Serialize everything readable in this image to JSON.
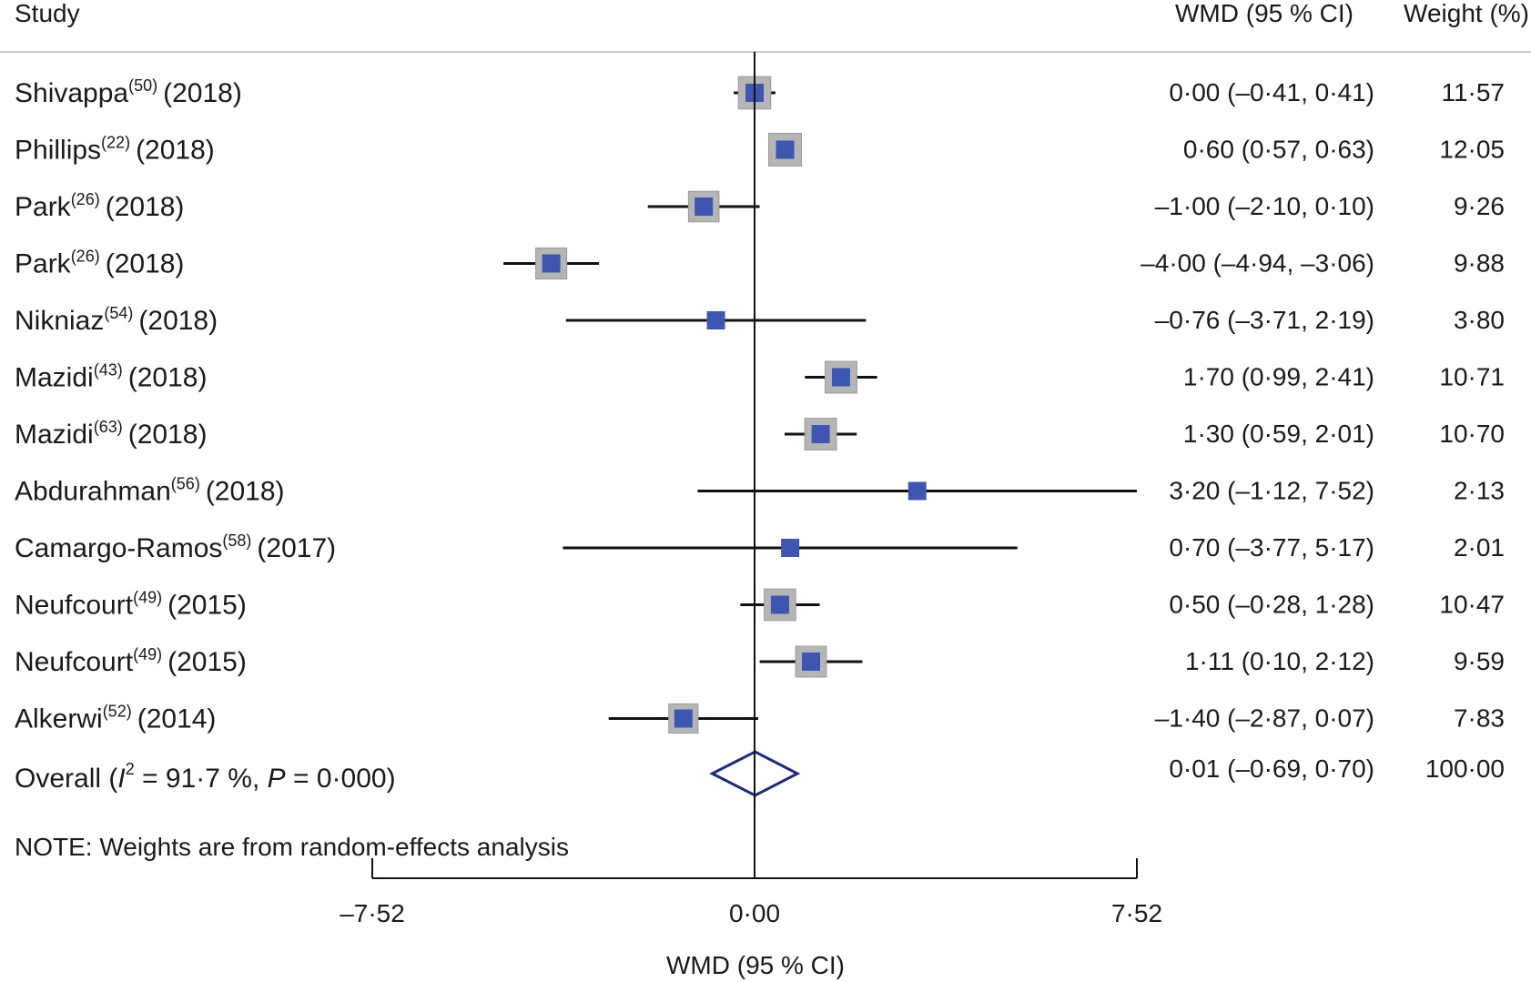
{
  "header": {
    "study": "Study",
    "wmd_ci": "WMD (95 % CI)",
    "weight": "Weight (%)"
  },
  "note": "NOTE: Weights are from random-effects analysis",
  "colors": {
    "marker": "#3f56b0",
    "marker_box": "#b5b5b5",
    "line": "#111111",
    "diamond": "#1f2a7a",
    "header_rule": "#cccccc"
  },
  "chart_data": {
    "type": "forest",
    "xlabel": "WMD (95 % CI)",
    "xlim": [
      -7.52,
      7.52
    ],
    "ticks": [
      {
        "value": -7.52,
        "label": "–7·52"
      },
      {
        "value": 0,
        "label": "0·00"
      },
      {
        "value": 7.52,
        "label": "7·52"
      }
    ],
    "studies": [
      {
        "name": "Shivappa",
        "ref": "(50)",
        "year": "(2018)",
        "est": 0.0,
        "lo": -0.41,
        "hi": 0.41,
        "ci_label": "0·00 (–0·41, 0·41)",
        "weight": 11.57,
        "weight_label": "11·57"
      },
      {
        "name": "Phillips",
        "ref": "(22)",
        "year": "(2018)",
        "est": 0.6,
        "lo": 0.57,
        "hi": 0.63,
        "ci_label": "0·60 (0·57, 0·63)",
        "weight": 12.05,
        "weight_label": "12·05"
      },
      {
        "name": "Park",
        "ref": "(26)",
        "year": "(2018)",
        "est": -1.0,
        "lo": -2.1,
        "hi": 0.1,
        "ci_label": "–1·00 (–2·10, 0·10)",
        "weight": 9.26,
        "weight_label": "9·26"
      },
      {
        "name": "Park",
        "ref": "(26)",
        "year": "(2018)",
        "est": -4.0,
        "lo": -4.94,
        "hi": -3.06,
        "ci_label": "–4·00 (–4·94, –3·06)",
        "weight": 9.88,
        "weight_label": "9·88"
      },
      {
        "name": "Nikniaz",
        "ref": "(54)",
        "year": "(2018)",
        "est": -0.76,
        "lo": -3.71,
        "hi": 2.19,
        "ci_label": "–0·76 (–3·71, 2·19)",
        "weight": 3.8,
        "weight_label": "3·80"
      },
      {
        "name": "Mazidi",
        "ref": "(43)",
        "year": "(2018)",
        "est": 1.7,
        "lo": 0.99,
        "hi": 2.41,
        "ci_label": "1·70 (0·99, 2·41)",
        "weight": 10.71,
        "weight_label": "10·71"
      },
      {
        "name": "Mazidi",
        "ref": "(63)",
        "year": "(2018)",
        "est": 1.3,
        "lo": 0.59,
        "hi": 2.01,
        "ci_label": "1·30 (0·59, 2·01)",
        "weight": 10.7,
        "weight_label": "10·70"
      },
      {
        "name": "Abdurahman",
        "ref": "(56)",
        "year": "(2018)",
        "est": 3.2,
        "lo": -1.12,
        "hi": 7.52,
        "ci_label": "3·20 (–1·12, 7·52)",
        "weight": 2.13,
        "weight_label": "2·13"
      },
      {
        "name": "Camargo-Ramos",
        "ref": "(58)",
        "year": "(2017)",
        "est": 0.7,
        "lo": -3.77,
        "hi": 5.17,
        "ci_label": "0·70 (–3·77, 5·17)",
        "weight": 2.01,
        "weight_label": "2·01"
      },
      {
        "name": "Neufcourt",
        "ref": "(49)",
        "year": "(2015)",
        "est": 0.5,
        "lo": -0.28,
        "hi": 1.28,
        "ci_label": "0·50 (–0·28, 1·28)",
        "weight": 10.47,
        "weight_label": "10·47"
      },
      {
        "name": "Neufcourt",
        "ref": "(49)",
        "year": "(2015)",
        "est": 1.11,
        "lo": 0.1,
        "hi": 2.12,
        "ci_label": "1·11 (0·10, 2·12)",
        "weight": 9.59,
        "weight_label": "9·59"
      },
      {
        "name": "Alkerwi",
        "ref": "(52)",
        "year": "(2014)",
        "est": -1.4,
        "lo": -2.87,
        "hi": 0.07,
        "ci_label": "–1·40 (–2·87, 0·07)",
        "weight": 7.83,
        "weight_label": "7·83"
      }
    ],
    "overall": {
      "label_prefix": "Overall (",
      "i_symbol": "I",
      "i_sup": "2",
      "i_value": " = 91·7 %, ",
      "p_symbol": "P",
      "p_value": " = 0·000)",
      "est": 0.01,
      "lo": -0.69,
      "hi": 0.7,
      "ci_label": "0·01 (–0·69, 0·70)",
      "weight": 100.0,
      "weight_label": "100·00"
    }
  }
}
